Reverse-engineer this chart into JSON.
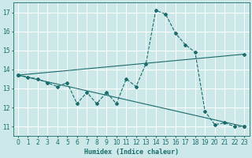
{
  "xlabel": "Humidex (Indice chaleur)",
  "xlim": [
    -0.5,
    23.5
  ],
  "ylim": [
    10.5,
    17.5
  ],
  "yticks": [
    11,
    12,
    13,
    14,
    15,
    16,
    17
  ],
  "xticks": [
    0,
    1,
    2,
    3,
    4,
    5,
    6,
    7,
    8,
    9,
    10,
    11,
    12,
    13,
    14,
    15,
    16,
    17,
    18,
    19,
    20,
    21,
    22,
    23
  ],
  "bg_color": "#cce8e8",
  "grid_color": "#ffffff",
  "line_color": "#1a6b6b",
  "line1_x": [
    0,
    1,
    2,
    3,
    4,
    5,
    6,
    7,
    8,
    9,
    10,
    11,
    12,
    13,
    14,
    15,
    16,
    17,
    18,
    19,
    20,
    21,
    22,
    23
  ],
  "line1_y": [
    13.7,
    13.6,
    13.5,
    13.3,
    13.1,
    13.3,
    12.2,
    12.8,
    12.2,
    12.8,
    12.2,
    13.5,
    13.1,
    14.3,
    17.1,
    16.9,
    15.9,
    15.3,
    14.9,
    11.8,
    11.1,
    11.2,
    11.0,
    11.0
  ],
  "line2_x": [
    0,
    23
  ],
  "line2_y": [
    13.7,
    11.0
  ],
  "line3_x": [
    0,
    23
  ],
  "line3_y": [
    13.7,
    14.8
  ]
}
